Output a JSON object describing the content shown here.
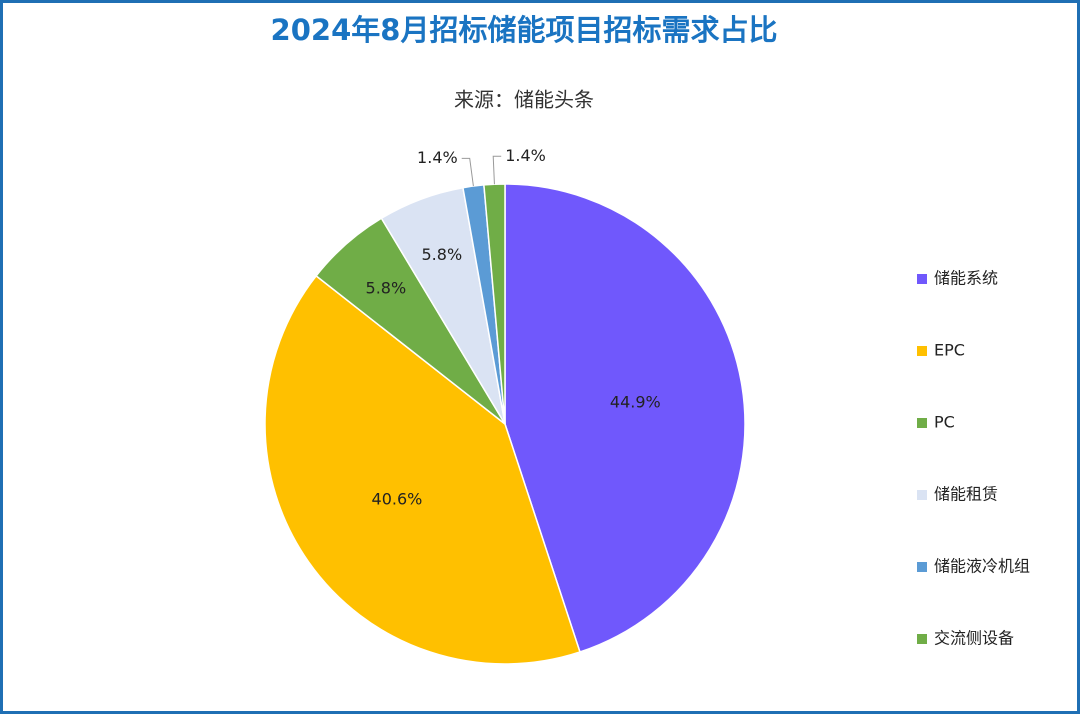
{
  "chart_data": {
    "type": "pie",
    "title": "2024年8月招标储能项目招标需求占比",
    "subtitle": "来源：储能头条",
    "categories": [
      "储能系统",
      "EPC",
      "PC",
      "储能租赁",
      "储能液冷机组",
      "交流侧设备"
    ],
    "values": [
      44.9,
      40.6,
      5.8,
      5.8,
      1.4,
      1.4
    ],
    "value_labels": [
      "44.9%",
      "40.6%",
      "5.8%",
      "5.8%",
      "1.4%",
      "1.4%"
    ],
    "colors": [
      "#7058fc",
      "#ffc000",
      "#70ad47",
      "#dae3f3",
      "#5b9bd5",
      "#70ad47"
    ],
    "legend": "right"
  }
}
